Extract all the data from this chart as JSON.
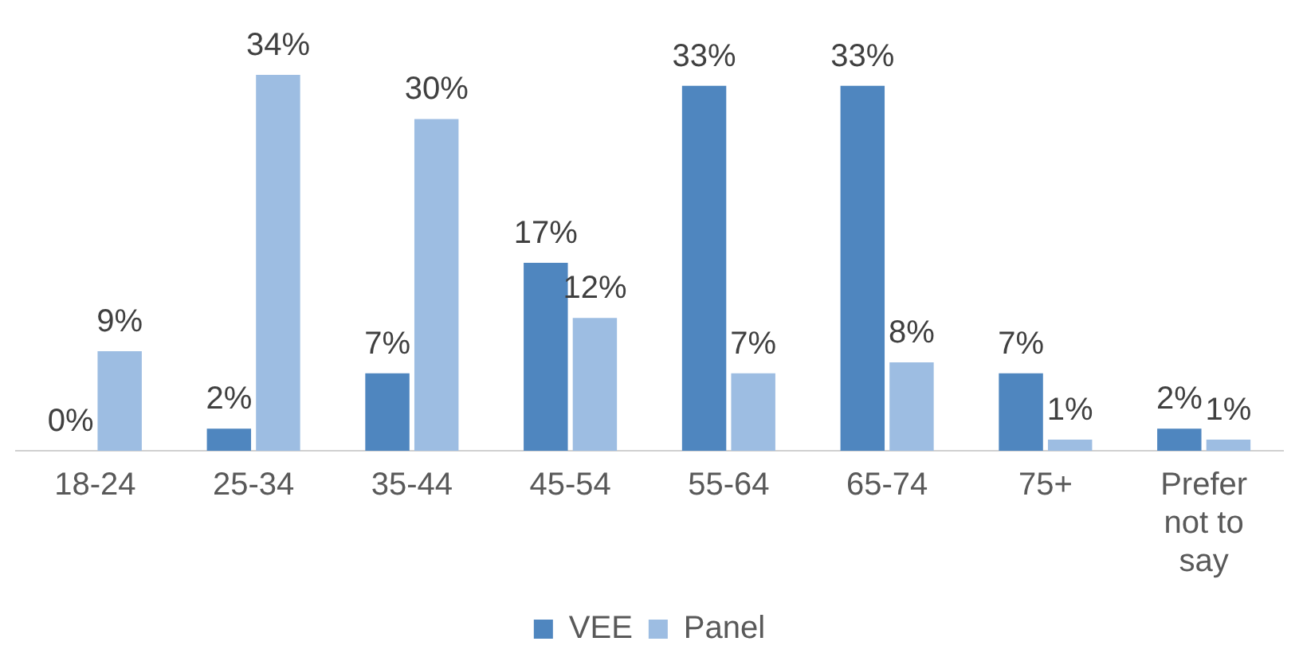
{
  "chart_data": {
    "type": "bar",
    "categories": [
      "18-24",
      "25-34",
      "35-44",
      "45-54",
      "55-64",
      "65-74",
      "75+",
      "Prefer not to say"
    ],
    "series": [
      {
        "name": "VEE",
        "color": "#4f86bf",
        "values": [
          0,
          2,
          7,
          17,
          33,
          33,
          7,
          2
        ],
        "value_labels": [
          "0%",
          "2%",
          "7%",
          "17%",
          "33%",
          "33%",
          "7%",
          "2%"
        ]
      },
      {
        "name": "Panel",
        "color": "#9dbde2",
        "values": [
          9,
          34,
          30,
          12,
          7,
          8,
          1,
          1
        ],
        "value_labels": [
          "9%",
          "34%",
          "30%",
          "12%",
          "7%",
          "8%",
          "1%",
          "1%"
        ]
      }
    ],
    "legend": "bottom",
    "grid": false
  }
}
